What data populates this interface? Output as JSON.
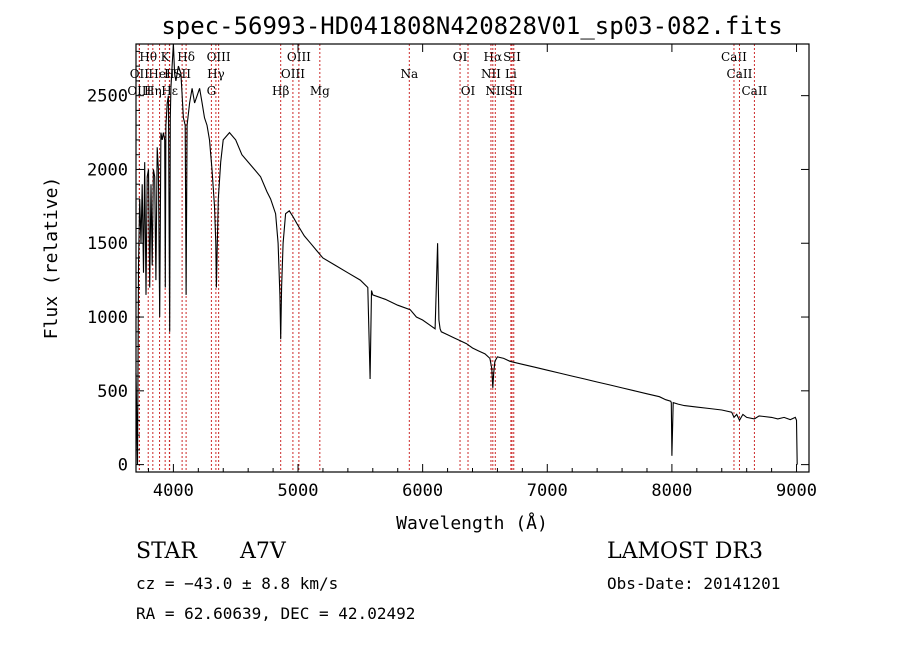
{
  "chart_data": {
    "type": "line",
    "title": "spec-56993-HD041808N420828V01_sp03-082.fits",
    "xlabel": "Wavelength (Å)",
    "ylabel": "Flux (relative)",
    "xlim": [
      3700,
      9100
    ],
    "ylim": [
      -50,
      2850
    ],
    "xticks": [
      4000,
      5000,
      6000,
      7000,
      8000,
      9000
    ],
    "yticks": [
      0,
      500,
      1000,
      1500,
      2000,
      2500
    ],
    "series": [
      {
        "name": "flux",
        "x": [
          3700,
          3712,
          3720,
          3730,
          3740,
          3750,
          3760,
          3770,
          3780,
          3790,
          3800,
          3810,
          3820,
          3830,
          3840,
          3850,
          3860,
          3870,
          3880,
          3890,
          3900,
          3910,
          3920,
          3930,
          3935,
          3940,
          3950,
          3960,
          3970,
          3975,
          3980,
          3990,
          4000,
          4010,
          4020,
          4040,
          4060,
          4080,
          4095,
          4102,
          4110,
          4130,
          4150,
          4170,
          4190,
          4210,
          4230,
          4250,
          4270,
          4290,
          4310,
          4330,
          4340,
          4345,
          4352,
          4360,
          4380,
          4400,
          4450,
          4500,
          4550,
          4600,
          4650,
          4700,
          4750,
          4780,
          4800,
          4820,
          4840,
          4855,
          4861,
          4868,
          4880,
          4900,
          4930,
          4960,
          5000,
          5050,
          5100,
          5150,
          5200,
          5300,
          5400,
          5500,
          5560,
          5578,
          5590,
          5600,
          5700,
          5800,
          5900,
          5950,
          6000,
          6050,
          6100,
          6120,
          6130,
          6140,
          6150,
          6200,
          6250,
          6300,
          6350,
          6400,
          6450,
          6500,
          6540,
          6555,
          6563,
          6570,
          6580,
          6600,
          6650,
          6700,
          6750,
          6800,
          6900,
          7000,
          7100,
          7200,
          7300,
          7400,
          7500,
          7600,
          7700,
          7800,
          7900,
          7950,
          7990,
          7995,
          8000,
          8010,
          8050,
          8100,
          8200,
          8300,
          8400,
          8480,
          8498,
          8520,
          8542,
          8570,
          8600,
          8662,
          8700,
          8800,
          8850,
          8900,
          8950,
          8990,
          9000,
          9005
        ],
        "y": [
          620,
          0,
          1350,
          1800,
          1500,
          1900,
          1300,
          2050,
          1150,
          1950,
          2000,
          1200,
          1900,
          1350,
          2000,
          1950,
          1250,
          2150,
          2000,
          1000,
          2250,
          2200,
          2250,
          2200,
          1200,
          2300,
          2450,
          2500,
          900,
          2350,
          2550,
          2700,
          2850,
          2650,
          2600,
          2700,
          2650,
          2350,
          2300,
          1150,
          2300,
          2450,
          2550,
          2450,
          2500,
          2550,
          2450,
          2350,
          2300,
          2200,
          2000,
          1750,
          1500,
          1200,
          1500,
          1800,
          2050,
          2200,
          2250,
          2200,
          2100,
          2050,
          2000,
          1950,
          1850,
          1800,
          1750,
          1700,
          1500,
          1150,
          850,
          1200,
          1500,
          1700,
          1720,
          1680,
          1620,
          1550,
          1500,
          1450,
          1400,
          1350,
          1300,
          1250,
          1200,
          580,
          1180,
          1150,
          1120,
          1080,
          1050,
          1000,
          980,
          950,
          920,
          1500,
          980,
          920,
          900,
          880,
          860,
          840,
          820,
          790,
          770,
          750,
          720,
          650,
          520,
          620,
          700,
          730,
          720,
          700,
          690,
          680,
          660,
          640,
          620,
          600,
          580,
          560,
          540,
          520,
          500,
          480,
          460,
          440,
          430,
          420,
          60,
          420,
          410,
          400,
          390,
          380,
          370,
          355,
          320,
          340,
          300,
          340,
          320,
          310,
          330,
          320,
          310,
          320,
          305,
          320,
          300,
          0
        ]
      }
    ],
    "line_markers": [
      {
        "label": "Hθ",
        "x": 3798,
        "row": 1
      },
      {
        "label": "K",
        "x": 3934,
        "row": 1
      },
      {
        "label": "Hδ",
        "x": 4102,
        "row": 1
      },
      {
        "label": "OIII",
        "x": 4363,
        "row": 1
      },
      {
        "label": "OIII",
        "x": 5007,
        "row": 1
      },
      {
        "label": "OI",
        "x": 6300,
        "row": 1
      },
      {
        "label": "Hα",
        "x": 6563,
        "row": 1
      },
      {
        "label": "SII",
        "x": 6717,
        "row": 1
      },
      {
        "label": "CaII",
        "x": 8498,
        "row": 1
      },
      {
        "label": "OII",
        "x": 3727,
        "row": 2
      },
      {
        "label": "HeI",
        "x": 3889,
        "row": 2
      },
      {
        "label": "H",
        "x": 3968,
        "row": 2
      },
      {
        "label": "SII",
        "x": 4070,
        "row": 2
      },
      {
        "label": "Hγ",
        "x": 4341,
        "row": 2
      },
      {
        "label": "OIII",
        "x": 4959,
        "row": 2
      },
      {
        "label": "Na",
        "x": 5893,
        "row": 2
      },
      {
        "label": "NII",
        "x": 6548,
        "row": 2
      },
      {
        "label": "Li",
        "x": 6708,
        "row": 2
      },
      {
        "label": "CaII",
        "x": 8542,
        "row": 2
      },
      {
        "label": "OIII",
        "x": 3727,
        "row": 3
      },
      {
        "label": "Hη",
        "x": 3835,
        "row": 3
      },
      {
        "label": "Hε",
        "x": 3970,
        "row": 3
      },
      {
        "label": "G",
        "x": 4305,
        "row": 3
      },
      {
        "label": "Hβ",
        "x": 4861,
        "row": 3
      },
      {
        "label": "Mg",
        "x": 5175,
        "row": 3
      },
      {
        "label": "OI",
        "x": 6364,
        "row": 3
      },
      {
        "label": "NII",
        "x": 6583,
        "row": 3
      },
      {
        "label": "SII",
        "x": 6731,
        "row": 3
      },
      {
        "label": "CaII",
        "x": 8662,
        "row": 3
      }
    ]
  },
  "info": {
    "object_type": "STAR",
    "subclass": "A7V",
    "survey": "LAMOST DR3",
    "cz": "cz = −43.0 ± 8.8 km/s",
    "obs_date": "Obs-Date: 20141201",
    "coords": "RA =  62.60639, DEC =  42.02492"
  }
}
